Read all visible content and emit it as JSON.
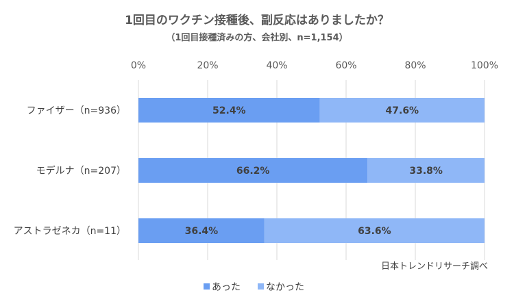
{
  "chart_data": {
    "type": "bar",
    "orientation": "horizontal",
    "stacked": "percent",
    "title": "1回目のワクチン接種後、副反応はありましたか？",
    "subtitle": "（1回目接種済みの方、会社別、n=1,154）",
    "categories": [
      "ファイザー（n=936）",
      "モデルナ（n=207）",
      "アストラゼネカ（n=11）"
    ],
    "series": [
      {
        "name": "あった",
        "values": [
          52.4,
          66.2,
          36.4
        ],
        "labels": [
          "52.4%",
          "66.2%",
          "36.4%"
        ],
        "color": "#6A9EF2"
      },
      {
        "name": "なかった",
        "values": [
          47.6,
          33.8,
          63.6
        ],
        "labels": [
          "47.6%",
          "33.8%",
          "63.6%"
        ],
        "color": "#8FB7F7"
      }
    ],
    "xlim": [
      0,
      100
    ],
    "xticks": [
      "0%",
      "20%",
      "40%",
      "60%",
      "80%",
      "100%"
    ],
    "grid": true,
    "legend_position": "bottom",
    "source": "日本トレンドリサーチ調べ"
  }
}
